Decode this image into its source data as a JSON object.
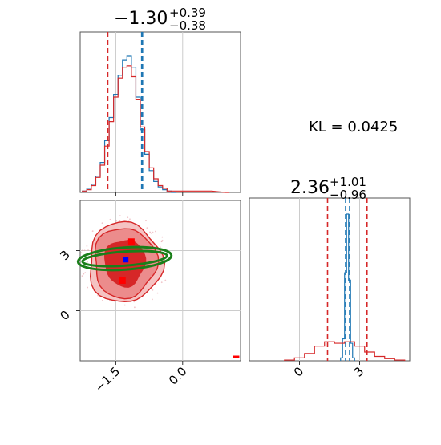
{
  "chart_data": [
    {
      "type": "histogram",
      "panel": "top-left marginal (parameter 1)",
      "title_main": "−1.30",
      "title_sup": "+0.39",
      "title_sub": "−0.38",
      "xlim": [
        -2.3,
        1.3
      ],
      "grid": true,
      "red_quantiles": [
        -1.68,
        -0.91
      ],
      "blue_quantiles": [
        -0.92,
        -0.9
      ],
      "series": [
        {
          "color": "#1f77b4",
          "bins_x": [
            -2.2,
            -2.1,
            -2.0,
            -1.9,
            -1.8,
            -1.7,
            -1.6,
            -1.5,
            -1.4,
            -1.3,
            -1.2,
            -1.1,
            -1.0,
            -0.9,
            -0.8,
            -0.7,
            -0.6,
            -0.5,
            -0.4,
            -0.3,
            -0.2
          ],
          "heights": [
            0.01,
            0.03,
            0.06,
            0.12,
            0.22,
            0.38,
            0.55,
            0.72,
            0.86,
            0.97,
            1.0,
            0.92,
            0.7,
            0.46,
            0.28,
            0.16,
            0.08,
            0.04,
            0.02,
            0.01,
            0.0
          ]
        },
        {
          "color": "#d62728",
          "bins_x": [
            -2.2,
            -2.1,
            -2.0,
            -1.9,
            -1.8,
            -1.7,
            -1.6,
            -1.5,
            -1.4,
            -1.3,
            -1.2,
            -1.1,
            -1.0,
            -0.9,
            -0.8,
            -0.7,
            -0.6,
            -0.5,
            -0.4,
            -0.3,
            -0.2,
            0.2,
            0.6,
            1.0
          ],
          "heights": [
            0.01,
            0.02,
            0.05,
            0.11,
            0.2,
            0.34,
            0.52,
            0.7,
            0.84,
            0.92,
            0.93,
            0.85,
            0.68,
            0.48,
            0.3,
            0.18,
            0.1,
            0.05,
            0.03,
            0.01,
            0.01,
            0.01,
            0.01,
            0.0
          ]
        }
      ]
    },
    {
      "type": "histogram",
      "panel": "bottom-right marginal (parameter 2)",
      "title_main": "2.36",
      "title_sup": "+1.01",
      "title_sub": "−0.96",
      "xlim": [
        -2.5,
        5.5
      ],
      "x_ticks": [
        0,
        3
      ],
      "x_tick_labels": [
        "0",
        "3"
      ],
      "grid": true,
      "red_quantiles": [
        1.4,
        3.37
      ],
      "blue_quantiles": [
        2.3,
        2.5
      ],
      "series": [
        {
          "color": "#1f77b4",
          "bins_x": [
            2.1,
            2.2,
            2.3,
            2.4,
            2.5,
            2.6,
            2.7
          ],
          "heights": [
            0.02,
            0.15,
            0.6,
            1.0,
            0.55,
            0.12,
            0.02
          ]
        },
        {
          "color": "#d62728",
          "bins_x": [
            -0.5,
            0.0,
            0.5,
            1.0,
            1.5,
            2.0,
            2.5,
            3.0,
            3.5,
            4.0,
            4.5,
            5.0
          ],
          "heights": [
            0.005,
            0.02,
            0.05,
            0.1,
            0.13,
            0.12,
            0.13,
            0.1,
            0.06,
            0.03,
            0.015,
            0.005
          ]
        }
      ]
    },
    {
      "type": "contour",
      "panel": "bottom-left joint (parameter 1 vs parameter 2)",
      "xlim": [
        -2.3,
        1.3
      ],
      "ylim": [
        -2.5,
        5.5
      ],
      "x_ticks": [
        -1.5,
        0.0
      ],
      "x_tick_labels": [
        "−1.5",
        "0.0"
      ],
      "y_ticks": [
        0,
        3
      ],
      "y_tick_labels": [
        "0",
        "3"
      ],
      "grid": true,
      "red_contours_center": [
        -1.3,
        2.4
      ],
      "red_contours_radii": [
        [
          0.45,
          1.15
        ],
        [
          0.7,
          1.75
        ],
        [
          0.82,
          2.0
        ]
      ],
      "red_squares": [
        [
          -1.15,
          3.45
        ],
        [
          -1.35,
          1.5
        ]
      ],
      "blue_point": [
        -1.28,
        2.55
      ],
      "green_ellipses": {
        "center": [
          -1.3,
          2.6
        ],
        "rx_ry": [
          [
            0.95,
            0.35
          ],
          [
            1.05,
            0.55
          ]
        ]
      },
      "outlier_point": [
        1.2,
        -2.3
      ]
    }
  ],
  "annotation": {
    "label": "KL = 0.0425"
  },
  "colors": {
    "blue": "#1f77b4",
    "red": "#d62728",
    "green": "#1a7f1a",
    "grid": "#cccccc"
  }
}
